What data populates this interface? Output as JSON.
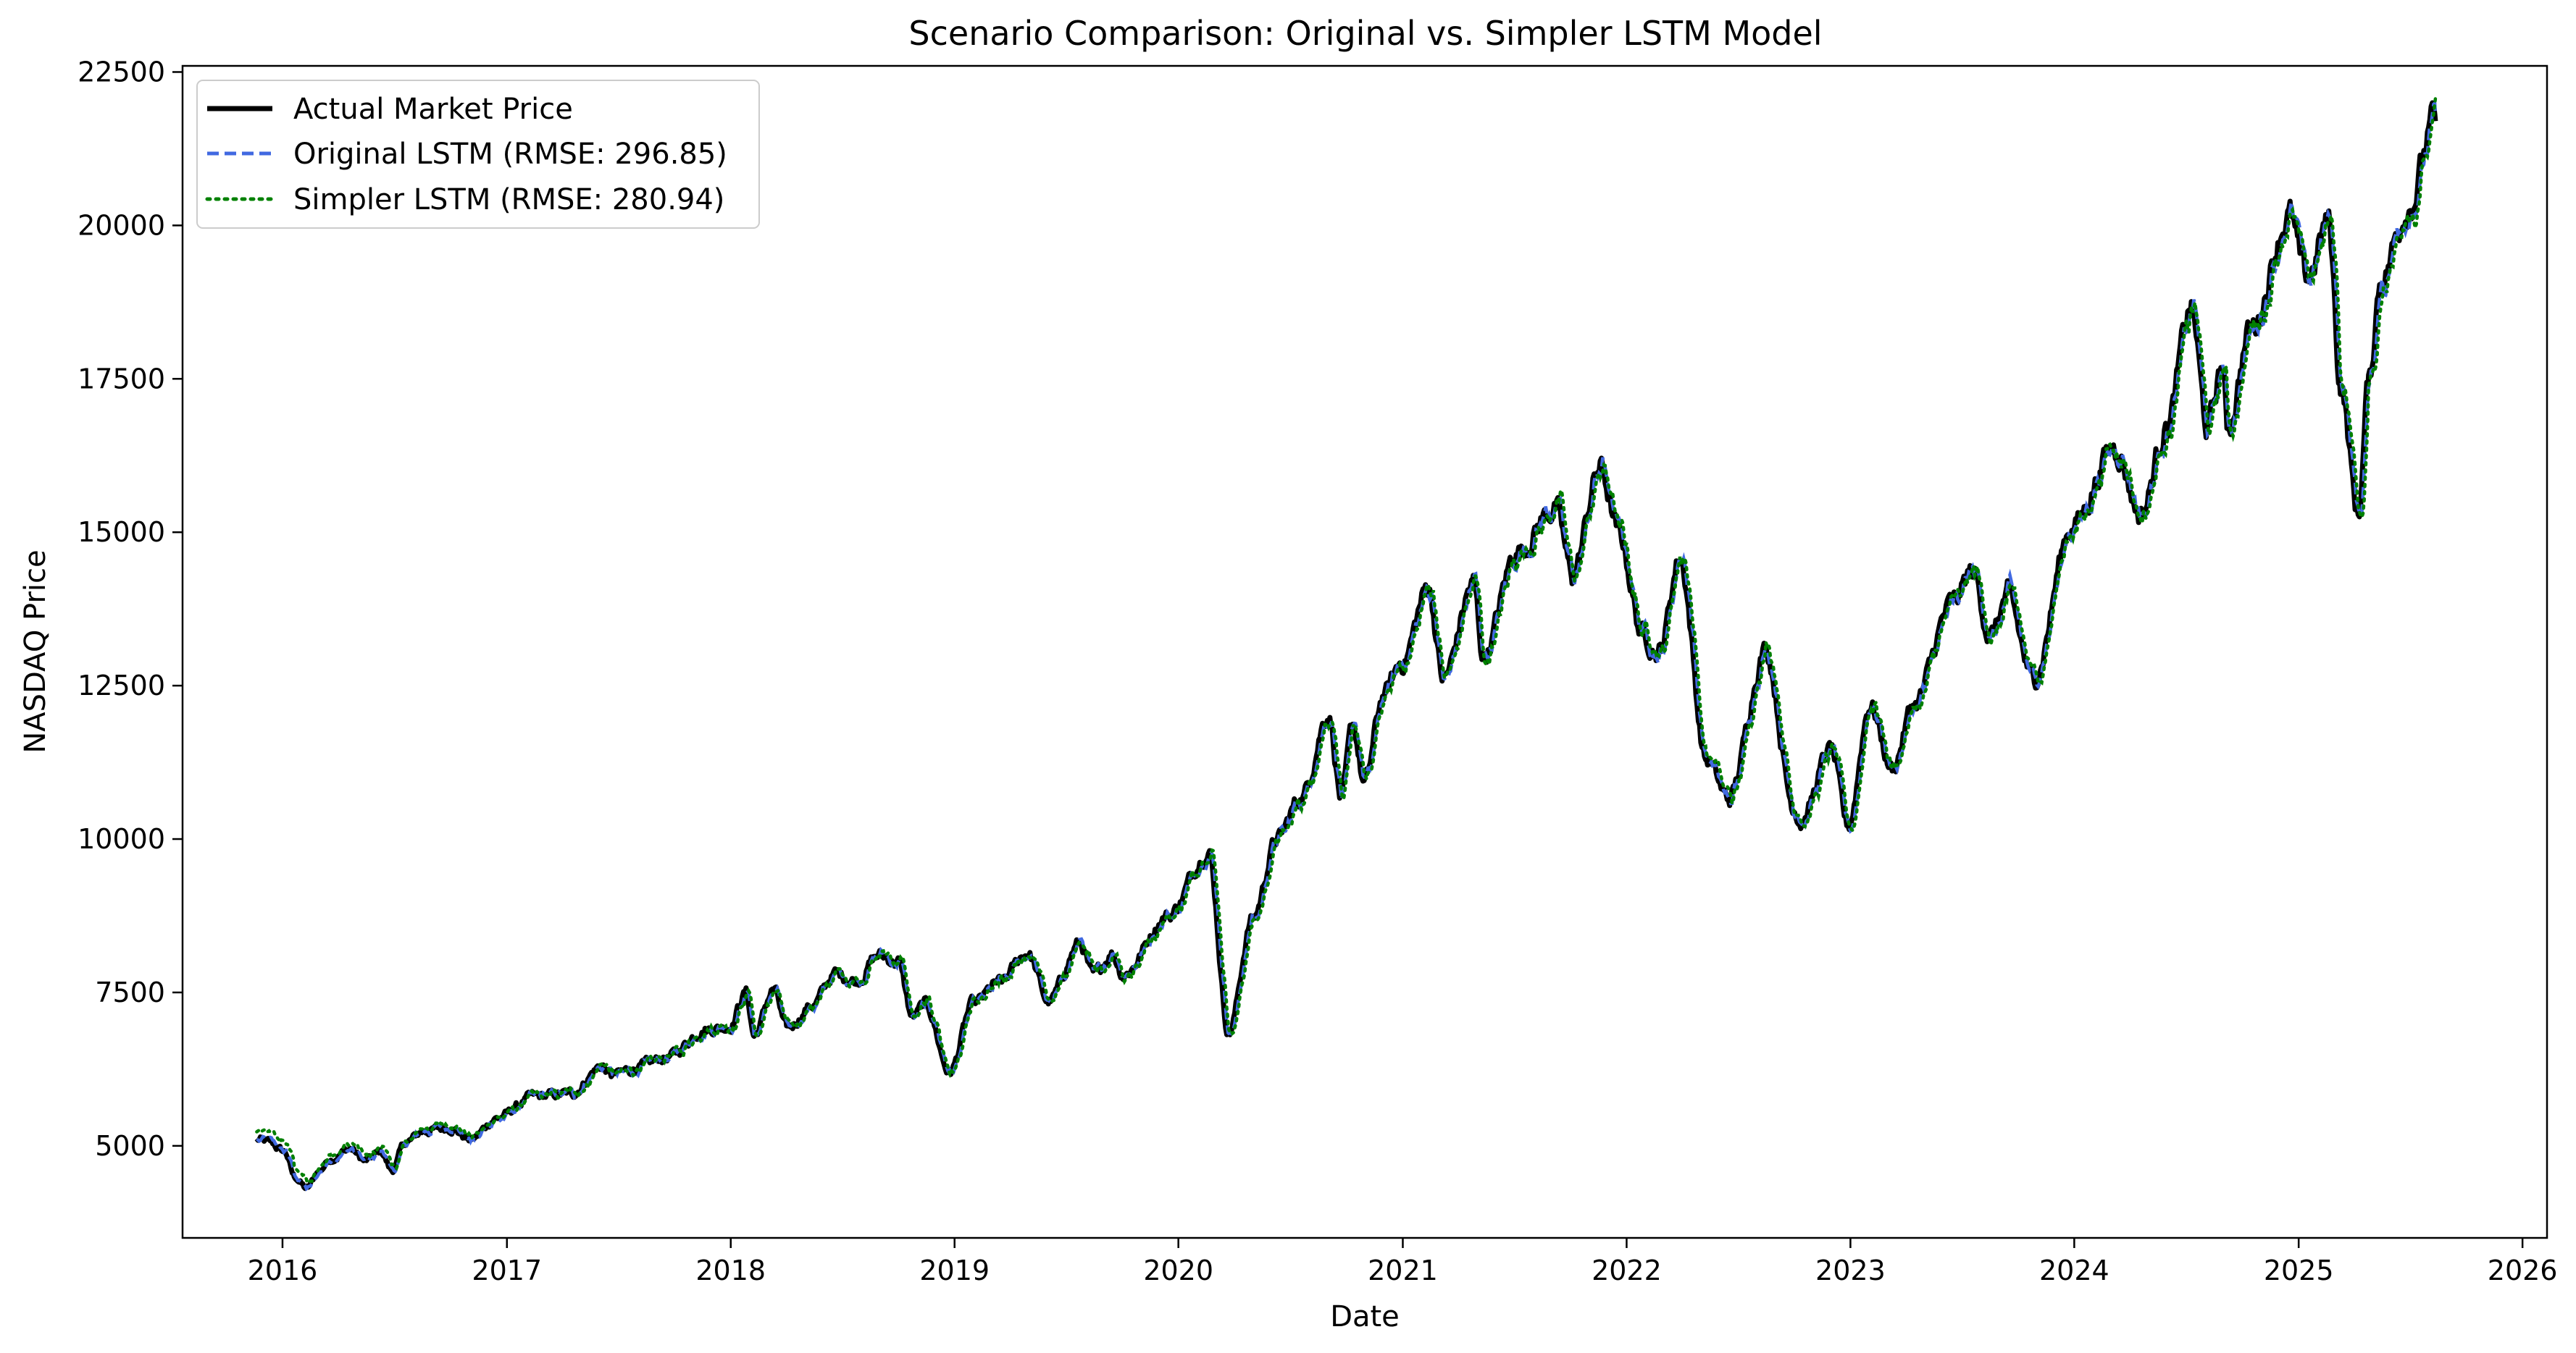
{
  "chart_data": {
    "type": "line",
    "title": "Scenario Comparison: Original vs. Simpler LSTM Model",
    "xlabel": "Date",
    "ylabel": "NASDAQ Price",
    "xlim": [
      "2015-07-22",
      "2026-02-10"
    ],
    "ylim": [
      3500,
      22600
    ],
    "x_ticks": [
      "2016",
      "2017",
      "2018",
      "2019",
      "2020",
      "2021",
      "2022",
      "2023",
      "2024",
      "2025",
      "2026"
    ],
    "y_ticks": [
      5000,
      7500,
      10000,
      12500,
      15000,
      17500,
      20000,
      22500
    ],
    "grid": false,
    "legend_position": "top-left",
    "series": [
      {
        "name": "Actual Market Price",
        "color": "#000000",
        "style": "solid",
        "width": 3
      },
      {
        "name": "Original LSTM (RMSE: 296.85)",
        "color": "#4169e1",
        "style": "dashed",
        "width": 2
      },
      {
        "name": "Simpler LSTM (RMSE: 280.94)",
        "color": "#008000",
        "style": "dotted",
        "width": 2
      }
    ],
    "actual_points": [
      [
        "2015-11-20",
        5100
      ],
      [
        "2015-12-10",
        5050
      ],
      [
        "2016-01-05",
        4900
      ],
      [
        "2016-01-20",
        4500
      ],
      [
        "2016-02-10",
        4300
      ],
      [
        "2016-03-01",
        4600
      ],
      [
        "2016-03-20",
        4800
      ],
      [
        "2016-04-20",
        4950
      ],
      [
        "2016-05-15",
        4750
      ],
      [
        "2016-06-10",
        4900
      ],
      [
        "2016-06-27",
        4600
      ],
      [
        "2016-07-20",
        5050
      ],
      [
        "2016-08-20",
        5250
      ],
      [
        "2016-10-01",
        5300
      ],
      [
        "2016-11-03",
        5100
      ],
      [
        "2016-12-15",
        5450
      ],
      [
        "2017-02-15",
        5800
      ],
      [
        "2017-04-15",
        5850
      ],
      [
        "2017-06-05",
        6300
      ],
      [
        "2017-06-20",
        6150
      ],
      [
        "2017-08-10",
        6300
      ],
      [
        "2017-09-20",
        6450
      ],
      [
        "2017-11-20",
        6900
      ],
      [
        "2017-12-29",
        6950
      ],
      [
        "2018-01-26",
        7500
      ],
      [
        "2018-02-08",
        6800
      ],
      [
        "2018-03-12",
        7550
      ],
      [
        "2018-04-02",
        6900
      ],
      [
        "2018-05-15",
        7300
      ],
      [
        "2018-06-20",
        7800
      ],
      [
        "2018-07-25",
        7700
      ],
      [
        "2018-08-30",
        8100
      ],
      [
        "2018-10-01",
        8000
      ],
      [
        "2018-10-24",
        7100
      ],
      [
        "2018-11-15",
        7300
      ],
      [
        "2018-12-24",
        6200
      ],
      [
        "2019-01-31",
        7300
      ],
      [
        "2019-03-15",
        7650
      ],
      [
        "2019-04-30",
        8150
      ],
      [
        "2019-06-03",
        7350
      ],
      [
        "2019-07-25",
        8300
      ],
      [
        "2019-08-15",
        7750
      ],
      [
        "2019-09-15",
        8150
      ],
      [
        "2019-10-03",
        7800
      ],
      [
        "2019-12-15",
        8750
      ],
      [
        "2020-02-19",
        9800
      ],
      [
        "2020-03-23",
        6850
      ],
      [
        "2020-05-01",
        8700
      ],
      [
        "2020-06-10",
        10000
      ],
      [
        "2020-07-20",
        10700
      ],
      [
        "2020-09-02",
        12050
      ],
      [
        "2020-09-23",
        10650
      ],
      [
        "2020-10-12",
        11850
      ],
      [
        "2020-10-30",
        10900
      ],
      [
        "2020-12-01",
        12350
      ],
      [
        "2020-12-31",
        12900
      ],
      [
        "2021-02-12",
        14100
      ],
      [
        "2021-03-08",
        12600
      ],
      [
        "2021-04-26",
        14150
      ],
      [
        "2021-05-12",
        13000
      ],
      [
        "2021-07-07",
        14700
      ],
      [
        "2021-09-07",
        15400
      ],
      [
        "2021-10-04",
        14300
      ],
      [
        "2021-11-19",
        16050
      ],
      [
        "2021-12-20",
        14950
      ],
      [
        "2022-01-27",
        13350
      ],
      [
        "2022-02-23",
        13050
      ],
      [
        "2022-03-29",
        14600
      ],
      [
        "2022-05-11",
        11300
      ],
      [
        "2022-06-16",
        10650
      ],
      [
        "2022-08-16",
        13100
      ],
      [
        "2022-09-30",
        10550
      ],
      [
        "2022-10-13",
        10300
      ],
      [
        "2022-11-30",
        11450
      ],
      [
        "2022-12-28",
        10200
      ],
      [
        "2023-02-02",
        12200
      ],
      [
        "2023-03-10",
        11150
      ],
      [
        "2023-04-15",
        12200
      ],
      [
        "2023-06-15",
        13800
      ],
      [
        "2023-07-19",
        14350
      ],
      [
        "2023-08-18",
        13300
      ],
      [
        "2023-09-14",
        13950
      ],
      [
        "2023-10-26",
        12600
      ],
      [
        "2023-12-28",
        15100
      ],
      [
        "2024-03-08",
        16400
      ],
      [
        "2024-04-19",
        15300
      ],
      [
        "2024-05-31",
        16750
      ],
      [
        "2024-07-10",
        18650
      ],
      [
        "2024-08-05",
        16700
      ],
      [
        "2024-08-30",
        17700
      ],
      [
        "2024-09-06",
        16700
      ],
      [
        "2024-10-15",
        18300
      ],
      [
        "2024-12-16",
        20150
      ],
      [
        "2025-01-13",
        19100
      ],
      [
        "2025-02-19",
        20050
      ],
      [
        "2025-03-10",
        17450
      ],
      [
        "2025-04-08",
        15300
      ],
      [
        "2025-04-25",
        17400
      ],
      [
        "2025-05-15",
        19150
      ],
      [
        "2025-06-30",
        20350
      ],
      [
        "2025-08-12",
        21700
      ]
    ]
  }
}
